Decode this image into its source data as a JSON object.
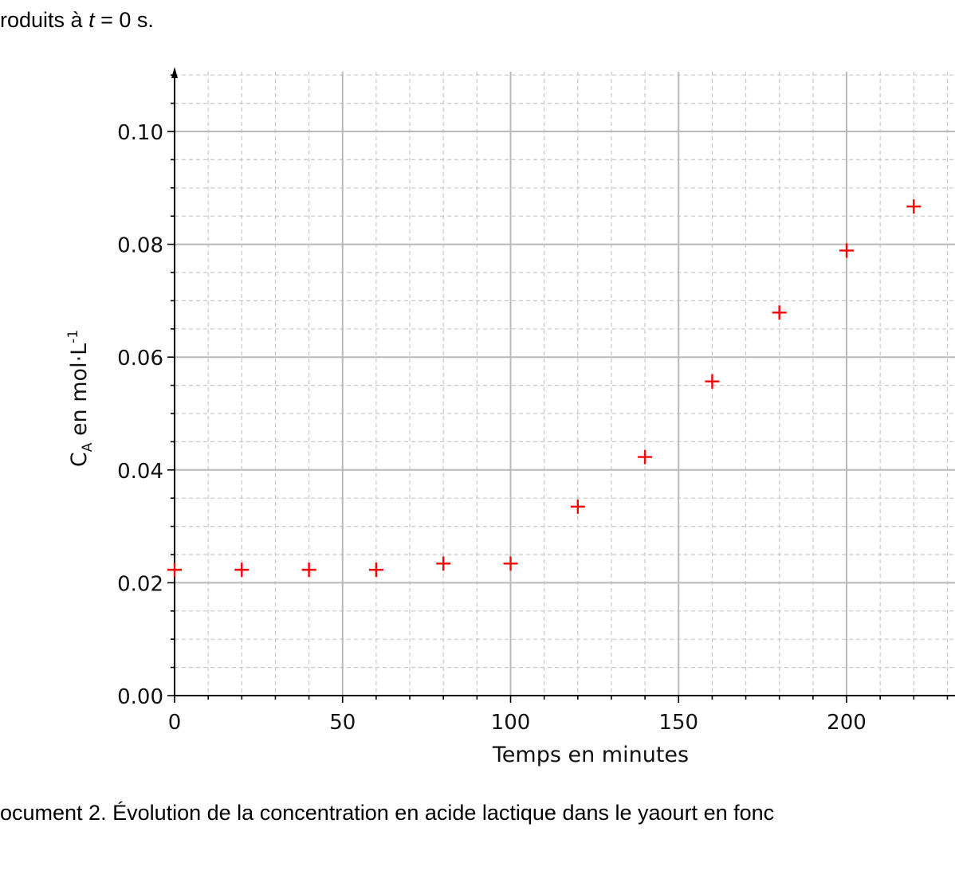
{
  "intro": {
    "text_prefix": "roduits à ",
    "var": "t",
    "text_suffix": " = 0 s."
  },
  "caption": "ocument 2. Évolution de la concentration en acide lactique dans le yaourt en fonc",
  "chart_data": {
    "type": "scatter",
    "marker": "+",
    "marker_color": "#ff0000",
    "grid": true,
    "grid_minor": true,
    "xlabel": "Temps en minutes",
    "ylabel_main": "C",
    "ylabel_sub": "A",
    "ylabel_rest": " en mol·L",
    "ylabel_sup": "-1",
    "xlim": [
      0,
      232
    ],
    "ylim": [
      0,
      0.11
    ],
    "xticks": [
      0,
      50,
      100,
      150,
      200
    ],
    "xtick_labels": [
      "0",
      "50",
      "100",
      "150",
      "200"
    ],
    "yticks": [
      0,
      0.02,
      0.04,
      0.06,
      0.08,
      0.1
    ],
    "ytick_labels": [
      "0.00",
      "0.02",
      "0.04",
      "0.06",
      "0.08",
      "0.10"
    ],
    "x_minor_step": 10,
    "y_minor_step": 0.005,
    "x": [
      0,
      20,
      40,
      60,
      80,
      100,
      120,
      140,
      160,
      180,
      200,
      220
    ],
    "y": [
      0.0223,
      0.0223,
      0.0223,
      0.0223,
      0.0234,
      0.0234,
      0.0335,
      0.0423,
      0.0557,
      0.0679,
      0.0789,
      0.0867
    ]
  }
}
